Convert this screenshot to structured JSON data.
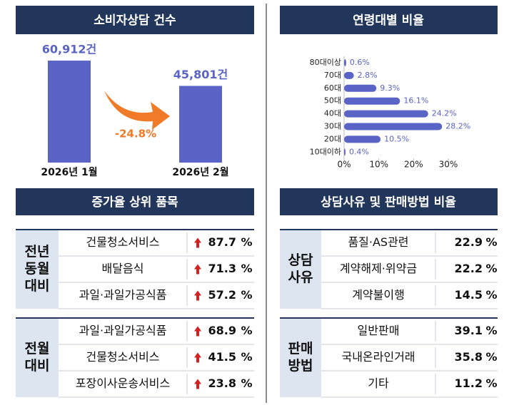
{
  "chart_data": [
    {
      "type": "bar",
      "title": "소비자상담 건수",
      "categories": [
        "2026년 1월",
        "2026년 2월"
      ],
      "values": [
        60912,
        45801
      ],
      "value_labels": [
        "60,912건",
        "45,801건"
      ],
      "color": "#5a63c6",
      "annotation": "-24.8%"
    },
    {
      "type": "hbar",
      "title": "연령대별 비율",
      "categories": [
        "80대이상",
        "70대",
        "60대",
        "50대",
        "40대",
        "30대",
        "20대",
        "10대이하"
      ],
      "values": [
        0.6,
        2.8,
        9.3,
        16.1,
        24.2,
        28.2,
        10.5,
        0.4
      ],
      "value_labels": [
        "0.6%",
        "2.8%",
        "9.3%",
        "16.1%",
        "24.2%",
        "28.2%",
        "10.5%",
        "0.4%"
      ],
      "color": "#5a63c6",
      "xlim": [
        0,
        30
      ],
      "xticks": [
        {
          "value": 0,
          "label": "0%"
        },
        {
          "value": 10,
          "label": "10%"
        },
        {
          "value": 20,
          "label": "20%"
        },
        {
          "value": 30,
          "label": "30%"
        }
      ]
    }
  ],
  "tables": [
    {
      "title": "증가율 상위 품목",
      "groups": [
        {
          "label": [
            "전년",
            "동월",
            "대비"
          ],
          "rows": [
            {
              "item": "건물청소서비스",
              "value": 87.7,
              "unit": "%"
            },
            {
              "item": "배달음식",
              "value": 71.3,
              "unit": "%"
            },
            {
              "item": "과일·과일가공식품",
              "value": 57.2,
              "unit": "%"
            }
          ]
        },
        {
          "label": [
            "전월",
            "대비"
          ],
          "rows": [
            {
              "item": "과일·과일가공식품",
              "value": 68.9,
              "unit": "%"
            },
            {
              "item": "건물청소서비스",
              "value": 41.5,
              "unit": "%"
            },
            {
              "item": "포장이사운송서비스",
              "value": 23.8,
              "unit": "%"
            }
          ]
        }
      ]
    },
    {
      "title": "상담사유 및 판매방법 비율",
      "groups": [
        {
          "label": [
            "상담",
            "사유"
          ],
          "rows": [
            {
              "item": "품질·AS관련",
              "value": 22.9,
              "unit": "%"
            },
            {
              "item": "계약해제·위약금",
              "value": 22.2,
              "unit": "%"
            },
            {
              "item": "계약불이행",
              "value": 14.5,
              "unit": "%"
            }
          ]
        },
        {
          "label": [
            "판매",
            "방법"
          ],
          "rows": [
            {
              "item": "일반판매",
              "value": 39.1,
              "unit": "%"
            },
            {
              "item": "국내온라인거래",
              "value": 35.8,
              "unit": "%"
            },
            {
              "item": "기타",
              "value": 11.2,
              "unit": "%"
            }
          ]
        }
      ]
    }
  ]
}
